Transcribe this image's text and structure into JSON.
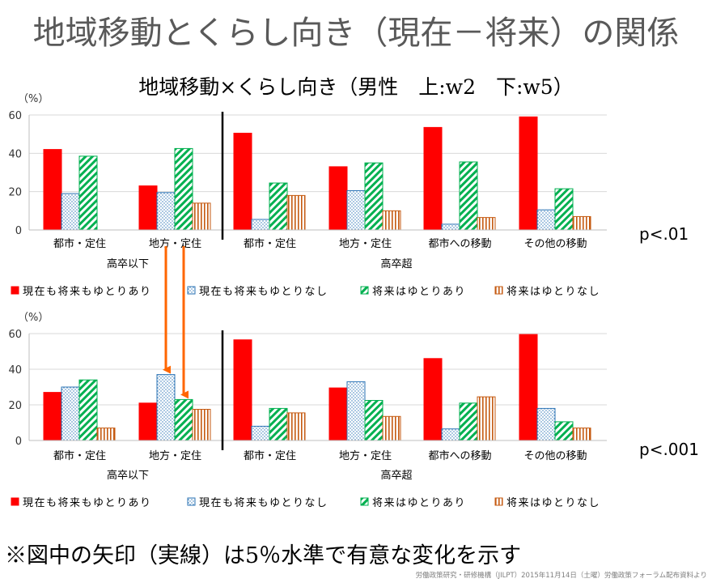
{
  "page": {
    "title": "地域移動とくらし向き（現在－将来）の関係",
    "subtitle": "地域移動×くらし向き（男性　上:w2　下:w5）",
    "note": "※図中の矢印（実線）は5％水準で有意な変化を示す",
    "credit": "労働政策研究・研修機構（JILPT）2015年11月14日（土曜）労働政策フォーラム配布資料より"
  },
  "colors": {
    "series_0": "#ff0000",
    "series_1": "#2e75b6",
    "series_2": "#00b050",
    "series_3": "#c55a11",
    "arrow": "#ff6600",
    "grid": "#d9d9d9"
  },
  "chart_data": [
    {
      "type": "bar",
      "unit_label": "（%）",
      "ylim": [
        0,
        60
      ],
      "yticks": [
        0,
        20,
        40,
        60
      ],
      "categories": [
        "都市・定住",
        "地方・定住",
        "都市・定住",
        "地方・定住",
        "都市への移動",
        "その他の移動"
      ],
      "groups": [
        {
          "label": "高卒以下",
          "span": [
            0,
            1
          ]
        },
        {
          "label": "高卒超",
          "span": [
            2,
            5
          ]
        }
      ],
      "series": [
        {
          "name": "現在も将来もゆとりあり",
          "values": [
            42,
            23,
            50.5,
            33,
            53.5,
            59
          ]
        },
        {
          "name": "現在も将来もゆとりなし",
          "values": [
            19,
            19.5,
            5.5,
            20.5,
            3,
            10.5
          ]
        },
        {
          "name": "将来はゆとりあり",
          "values": [
            38.5,
            42.5,
            24.5,
            35,
            35.5,
            21.5
          ]
        },
        {
          "name": "将来はゆとりなし",
          "values": [
            0,
            14,
            18,
            10,
            6.5,
            7
          ]
        }
      ],
      "significance": "p<.01"
    },
    {
      "type": "bar",
      "unit_label": "（%）",
      "ylim": [
        0,
        60
      ],
      "yticks": [
        0,
        20,
        40,
        60
      ],
      "categories": [
        "都市・定住",
        "地方・定住",
        "都市・定住",
        "地方・定住",
        "都市への移動",
        "その他の移動"
      ],
      "groups": [
        {
          "label": "高卒以下",
          "span": [
            0,
            1
          ]
        },
        {
          "label": "高卒超",
          "span": [
            2,
            5
          ]
        }
      ],
      "series": [
        {
          "name": "現在も将来もゆとりあり",
          "values": [
            27,
            21,
            56.5,
            29.5,
            46,
            59.5
          ]
        },
        {
          "name": "現在も将来もゆとりなし",
          "values": [
            30,
            37,
            8,
            33,
            6.5,
            18
          ]
        },
        {
          "name": "将来はゆとりあり",
          "values": [
            34,
            23,
            18,
            22.5,
            21,
            10.5
          ]
        },
        {
          "name": "将来はゆとりなし",
          "values": [
            7,
            17.5,
            15.5,
            13.5,
            24.5,
            7
          ]
        }
      ],
      "significance": "p<.001"
    }
  ]
}
